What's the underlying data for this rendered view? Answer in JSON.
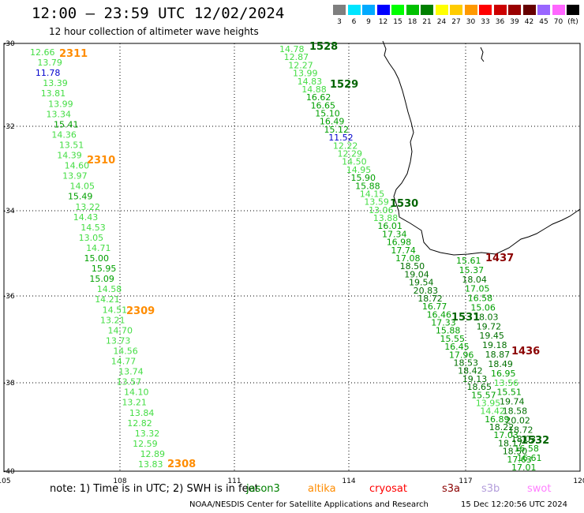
{
  "title": "12:00 — 23:59 UTC 12/02/2024",
  "subtitle": "12 hour collection of altimeter wave heights",
  "legend": {
    "labels": [
      "3",
      "6",
      "9",
      "12",
      "15",
      "18",
      "21",
      "24",
      "27",
      "30",
      "33",
      "36",
      "39",
      "42",
      "45",
      "70",
      "(ft)"
    ],
    "colors": [
      "#7f7f7f",
      "#00e5ff",
      "#00aaff",
      "#0000ff",
      "#00ff00",
      "#00c000",
      "#008000",
      "#ffff00",
      "#ffcc00",
      "#ff9900",
      "#ff0000",
      "#cc0000",
      "#990000",
      "#660000",
      "#9966ff",
      "#ff66ff",
      "#000000"
    ]
  },
  "axes": {
    "lat_ticks": [
      "-30",
      "-32",
      "-34",
      "-36",
      "-38",
      "-40"
    ],
    "lon_ticks": [
      "105",
      "108",
      "111",
      "114",
      "117",
      "120"
    ]
  },
  "passes": [
    {
      "id": "2311",
      "color": "#ff8c00"
    },
    {
      "id": "2310",
      "color": "#ff8c00"
    },
    {
      "id": "2309",
      "color": "#ff8c00"
    },
    {
      "id": "2308",
      "color": "#ff8c00"
    },
    {
      "id": "1528",
      "color": "#006400"
    },
    {
      "id": "1529",
      "color": "#006400"
    },
    {
      "id": "1530",
      "color": "#006400"
    },
    {
      "id": "1531",
      "color": "#006400"
    },
    {
      "id": "1532",
      "color": "#006400"
    },
    {
      "id": "1437",
      "color": "#8b0000"
    },
    {
      "id": "1436",
      "color": "#8b0000"
    }
  ],
  "track_west": [
    "12.66",
    "13.79",
    "11.78",
    "13.39",
    "13.81",
    "13.99",
    "13.34",
    "15.41",
    "14.36",
    "13.51",
    "14.39",
    "14.60",
    "13.97",
    "14.05",
    "15.49",
    "13.22",
    "14.43",
    "14.53",
    "13.05",
    "14.71",
    "15.00",
    "15.95",
    "15.09",
    "14.58",
    "14.21",
    "14.51",
    "13.21",
    "14.70",
    "13.73",
    "14.56",
    "14.77",
    "13.74",
    "13.57",
    "14.10",
    "13.21",
    "13.84",
    "12.82",
    "13.32",
    "12.59",
    "12.89",
    "13.83"
  ],
  "track_east": [
    "14.78",
    "12.87",
    "12.27",
    "13.99",
    "14.83",
    "14.88",
    "16.62",
    "16.65",
    "15.10",
    "16.49",
    "15.12",
    "11.52",
    "12.22",
    "12.29",
    "14.50",
    "14.95",
    "15.90",
    "15.88",
    "14.15",
    "13.59",
    "13.06",
    "13.88",
    "16.01",
    "17.34",
    "16.98",
    "17.74",
    "17.08",
    "18.50",
    "19.04",
    "19.54",
    "20.83",
    "18.72",
    "16.77",
    "16.46",
    "17.33",
    "15.88",
    "15.55",
    "16.45",
    "17.96",
    "18.53",
    "18.42",
    "19.13",
    "18.65",
    "15.57",
    "13.95",
    "14.42",
    "16.89",
    "18.22",
    "17.03",
    "18.17",
    "18.50",
    "17.63",
    "17.01"
  ],
  "track_south": [
    "15.61",
    "15.37",
    "18.04",
    "17.05",
    "16.58",
    "15.06",
    "18.03",
    "19.72",
    "19.45",
    "19.18",
    "18.87",
    "18.49",
    "16.95",
    "13.56",
    "15.51",
    "19.74",
    "18.58",
    "20.02",
    "18.72",
    "18.03",
    "16.58",
    "16.61"
  ],
  "note": "note: 1) Time is in UTC; 2) SWH is in feet",
  "missions": [
    {
      "name": "jason3",
      "color": "#008000"
    },
    {
      "name": "altika",
      "color": "#ff8c00"
    },
    {
      "name": "cryosat",
      "color": "#ff0000"
    },
    {
      "name": "s3a",
      "color": "#8b0000"
    },
    {
      "name": "s3b",
      "color": "#b39ddb"
    },
    {
      "name": "swot",
      "color": "#ff80ff"
    }
  ],
  "credit": "NOAA/NESDIS Center for Satellite Applications and Research",
  "timestamp": "15 Dec 12:20:56 UTC 2024"
}
